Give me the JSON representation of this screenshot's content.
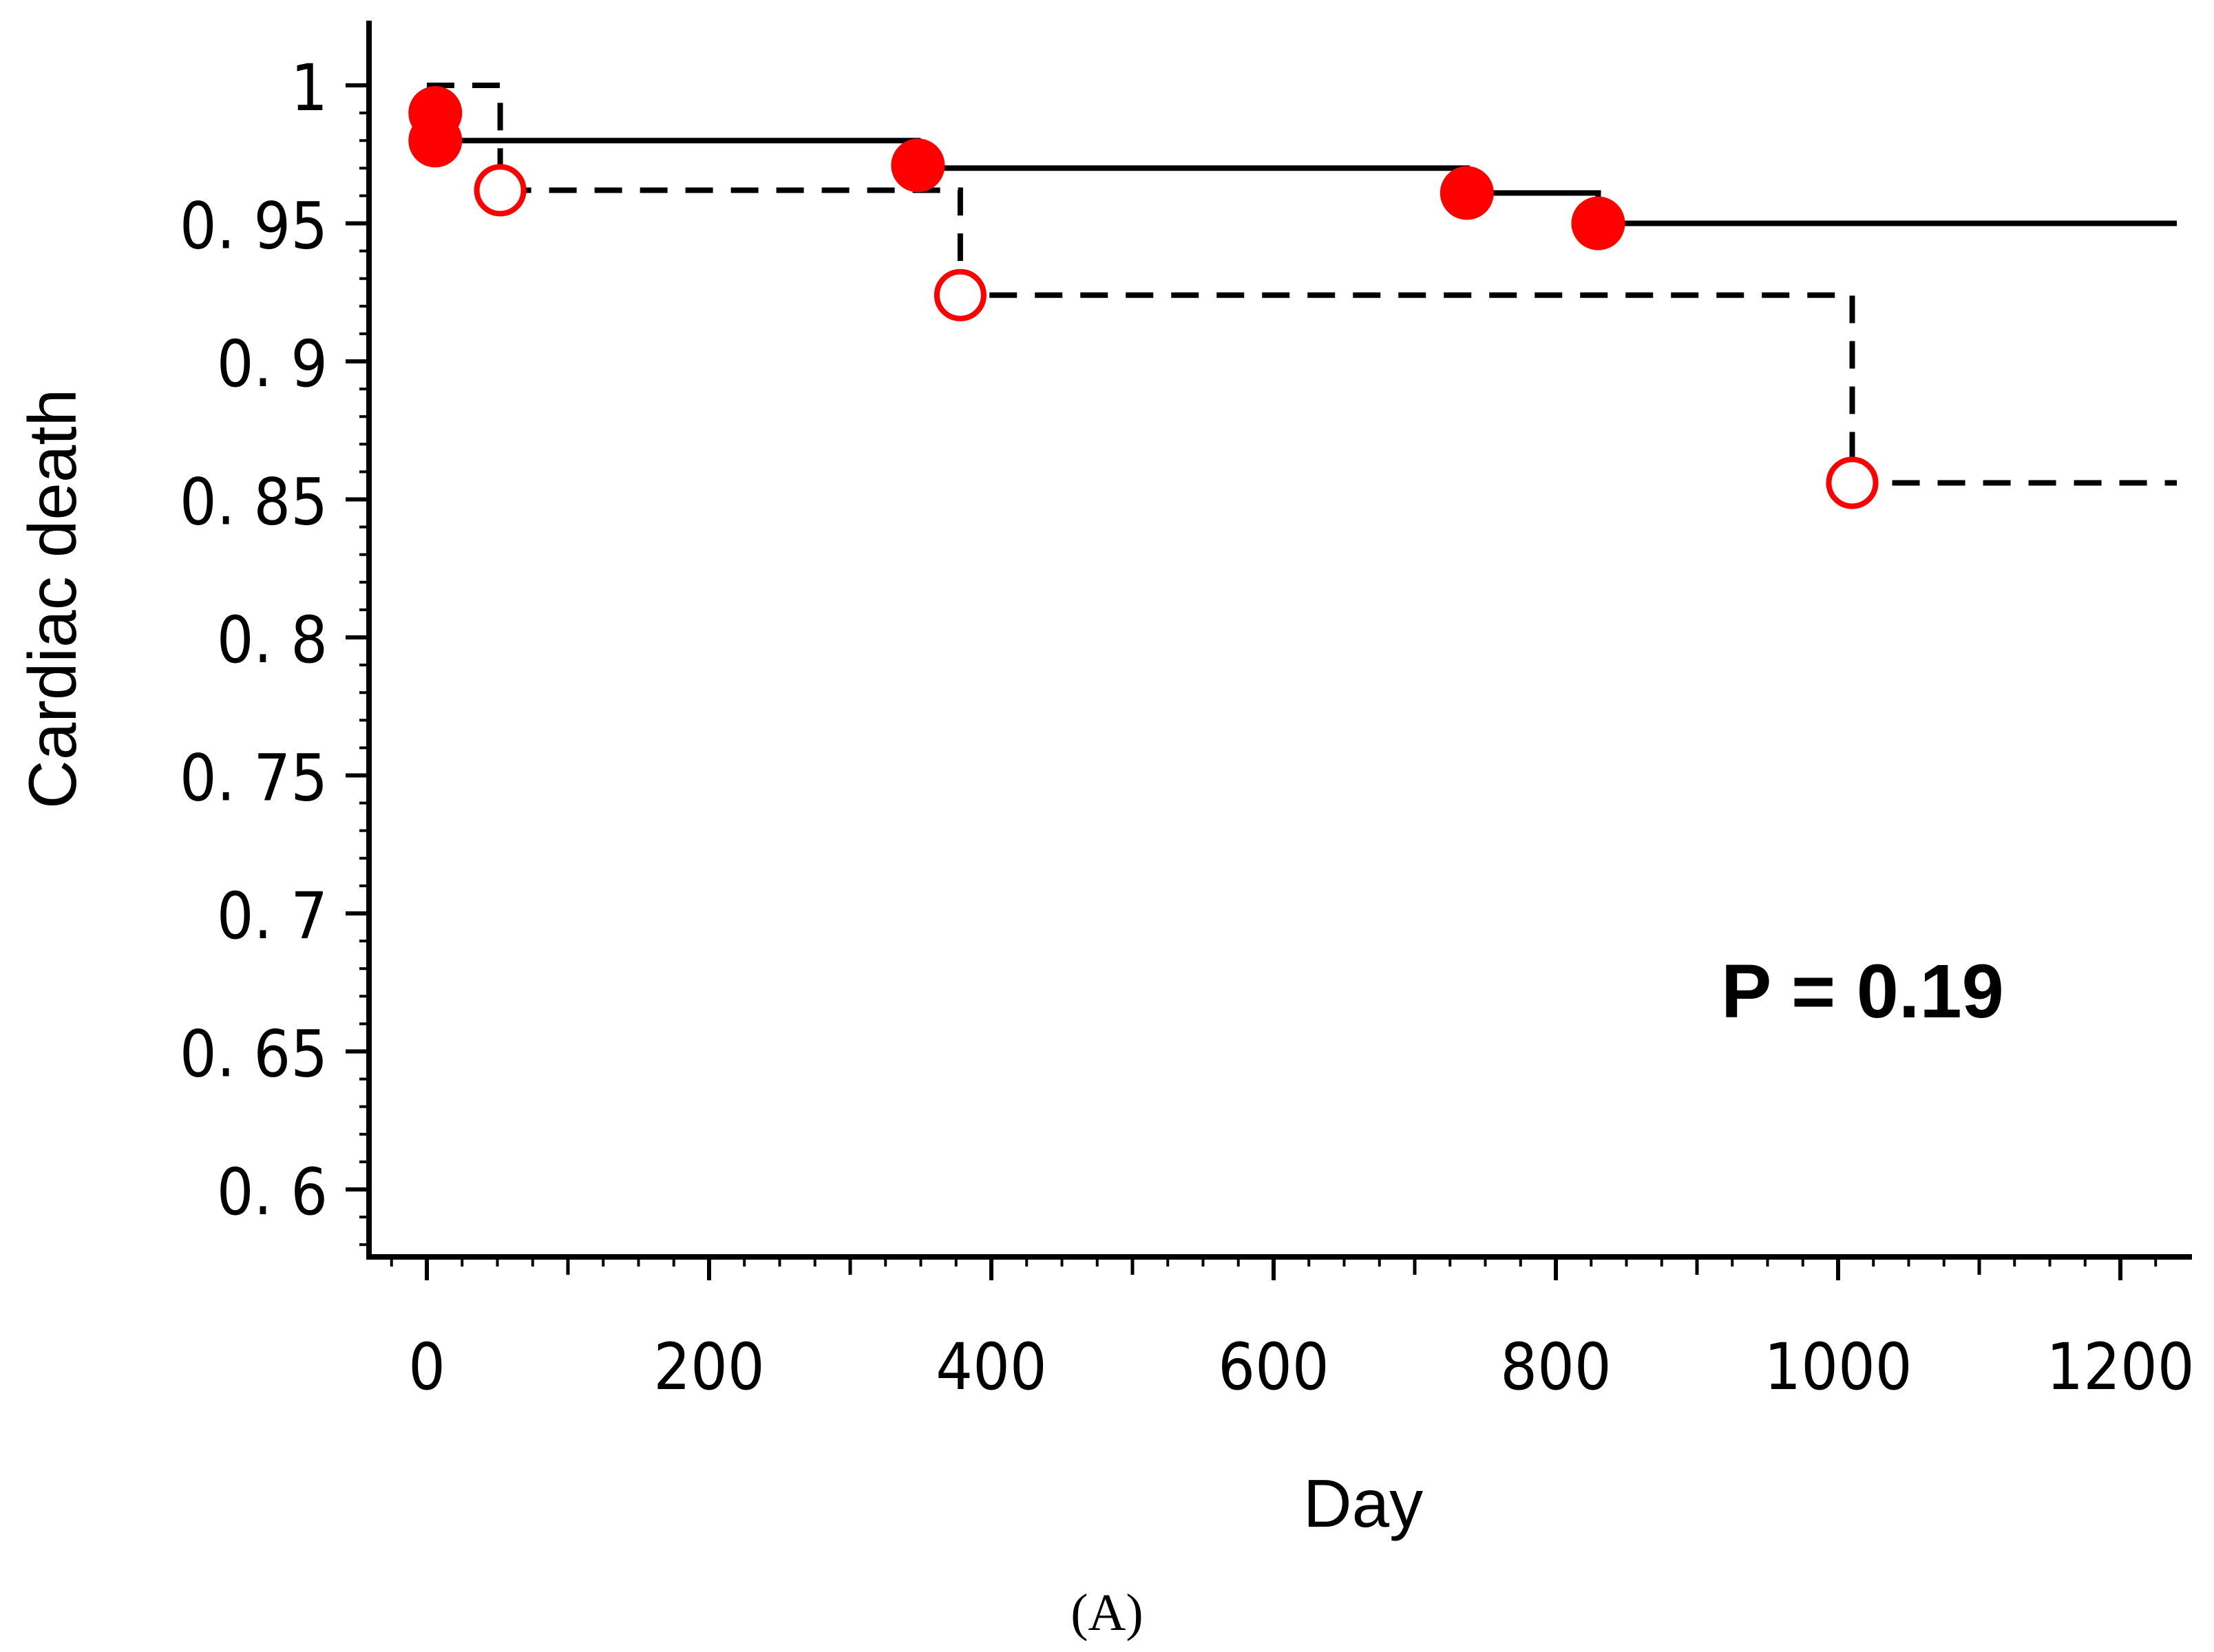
{
  "chart_data": {
    "type": "line",
    "title": "",
    "panel_label": "(A)",
    "xlabel": "Day",
    "ylabel": "Cardiac death",
    "xlim": [
      -20,
      1240
    ],
    "ylim": [
      0.573,
      1.012
    ],
    "x_ticks": [
      0,
      200,
      400,
      600,
      800,
      1000,
      1200
    ],
    "x_tick_labels": [
      "0",
      "200",
      "400",
      "600",
      "800",
      "1000",
      "1200"
    ],
    "y_ticks": [
      0.6,
      0.65,
      0.7,
      0.75,
      0.8,
      0.85,
      0.9,
      0.95,
      1
    ],
    "y_tick_labels": [
      "0. 6",
      "0. 65",
      "0. 7",
      "0. 75",
      "0. 8",
      "0. 85",
      "0. 9",
      "0. 95",
      "1"
    ],
    "annotation": "P = 0.19",
    "grid": false,
    "colors": {
      "line": "#000000",
      "marker": "#ff0000"
    },
    "series": [
      {
        "name": "solid",
        "line_style": "solid",
        "marker": "filled-circle",
        "steps": [
          {
            "x": 0,
            "y": 1.0
          },
          {
            "x": 4,
            "y": 0.99
          },
          {
            "x": 6,
            "y": 0.98
          },
          {
            "x": 348,
            "y": 0.97
          },
          {
            "x": 737,
            "y": 0.961
          },
          {
            "x": 830,
            "y": 0.95
          }
        ],
        "end_x": 1240,
        "markers": [
          {
            "x": 6,
            "y": 0.99
          },
          {
            "x": 6,
            "y": 0.98
          },
          {
            "x": 348,
            "y": 0.971
          },
          {
            "x": 737,
            "y": 0.961
          },
          {
            "x": 830,
            "y": 0.95
          }
        ]
      },
      {
        "name": "dashed",
        "line_style": "dashed",
        "marker": "open-circle",
        "steps": [
          {
            "x": 0,
            "y": 1.0
          },
          {
            "x": 52,
            "y": 0.962
          },
          {
            "x": 378,
            "y": 0.924
          },
          {
            "x": 1010,
            "y": 0.856
          }
        ],
        "end_x": 1240,
        "markers": [
          {
            "x": 52,
            "y": 0.962
          },
          {
            "x": 378,
            "y": 0.924
          },
          {
            "x": 1010,
            "y": 0.856
          }
        ]
      }
    ]
  }
}
